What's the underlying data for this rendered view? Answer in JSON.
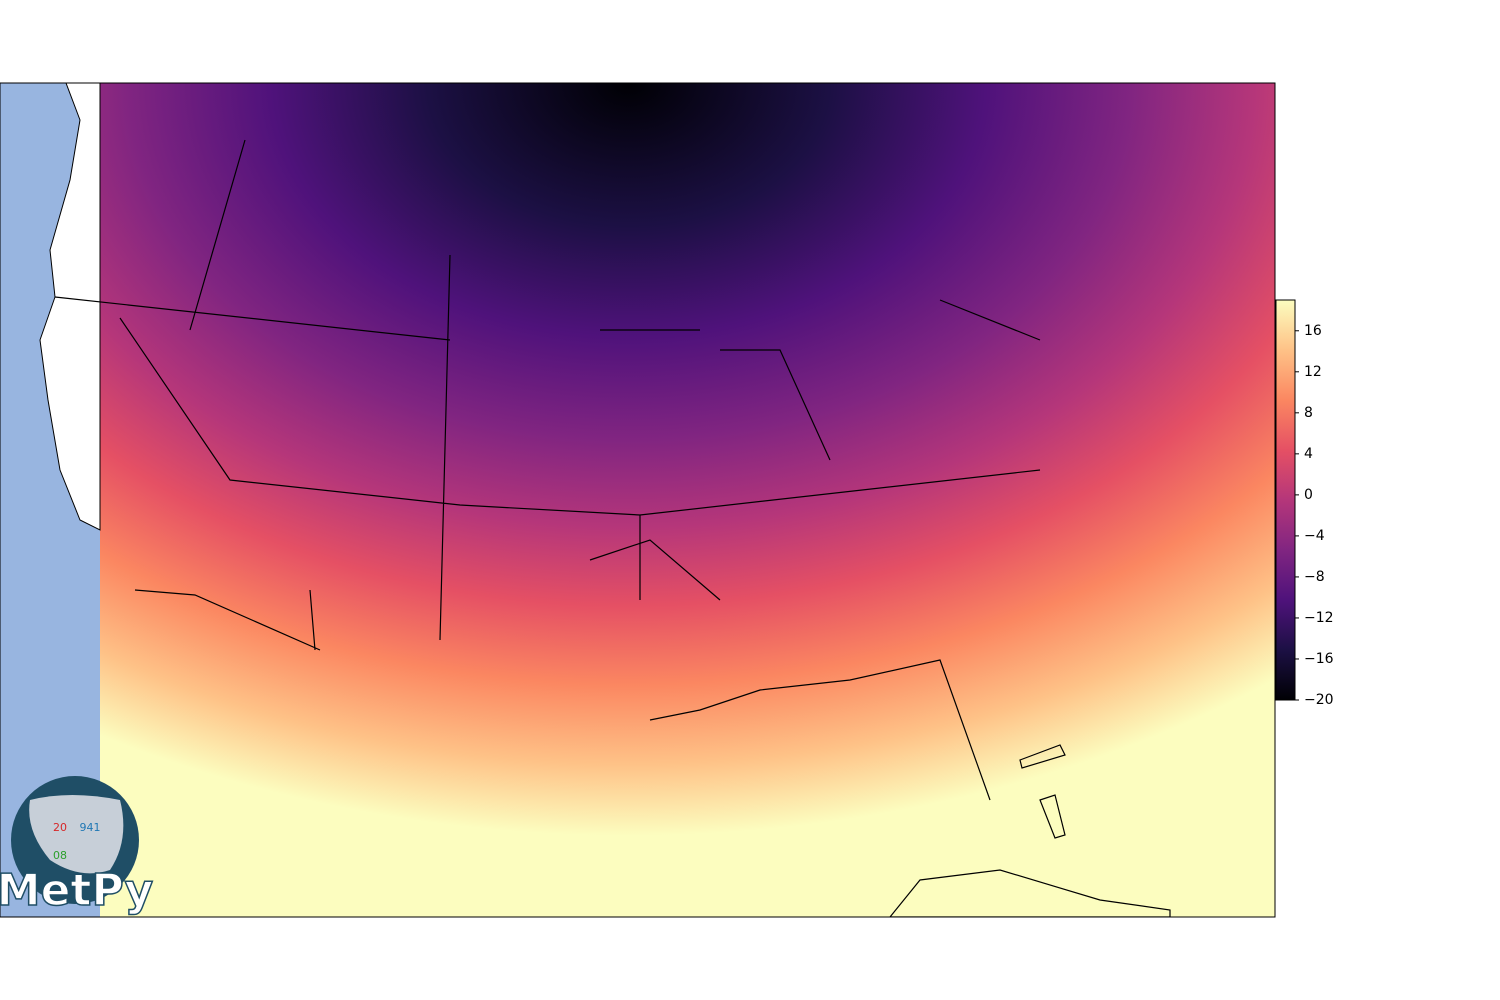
{
  "map": {
    "title_visible": false,
    "colorbar": {
      "range": [
        -20,
        19
      ],
      "ticks": [
        {
          "value": -20,
          "label": "−20"
        },
        {
          "value": -16,
          "label": "−16"
        },
        {
          "value": -12,
          "label": "−12"
        },
        {
          "value": -8,
          "label": "−8"
        },
        {
          "value": -4,
          "label": "−4"
        },
        0,
        4,
        8,
        12,
        16
      ],
      "colors": [
        "#000004",
        "#1c1044",
        "#4f127b",
        "#812581",
        "#b5367a",
        "#e55064",
        "#fb8761",
        "#fec287",
        "#fcfdbf"
      ]
    },
    "logo": {
      "temperature": "20",
      "pressure": "941",
      "dewpoint": "08",
      "name": "MetPy"
    }
  }
}
